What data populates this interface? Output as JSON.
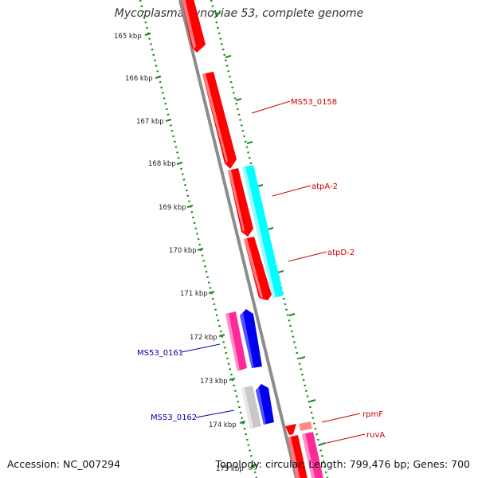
{
  "title": "Mycoplasma synoviae 53, complete genome",
  "accession": "Accession: NC_007294",
  "summary": "Topology: circular; Length: 799,476 bp; Genes: 700",
  "ticks": [
    "165 kbp",
    "166 kbp",
    "167 kbp",
    "168 kbp",
    "169 kbp",
    "170 kbp",
    "171 kbp",
    "172 kbp",
    "173 kbp",
    "174 kbp",
    "175 kbp"
  ],
  "gene_labels": [
    {
      "name": "MS53_0158",
      "color": "#cc0000"
    },
    {
      "name": "atpA-2",
      "color": "#cc0000"
    },
    {
      "name": "atpD-2",
      "color": "#cc0000"
    },
    {
      "name": "MS53_0161",
      "color": "#0000aa"
    },
    {
      "name": "MS53_0162",
      "color": "#0000aa"
    },
    {
      "name": "rpmF",
      "color": "#cc0000"
    },
    {
      "name": "ruvA",
      "color": "#cc0000"
    }
  ],
  "colors": {
    "backbone": "#8c8c8c",
    "gene_red": "#ff0000",
    "gene_cyan": "#00ffff",
    "gene_magenta": "#ff2a9a",
    "gene_blue": "#0000ee",
    "gene_grey": "#c8c8c8",
    "ruler": "#1a8a1a"
  }
}
